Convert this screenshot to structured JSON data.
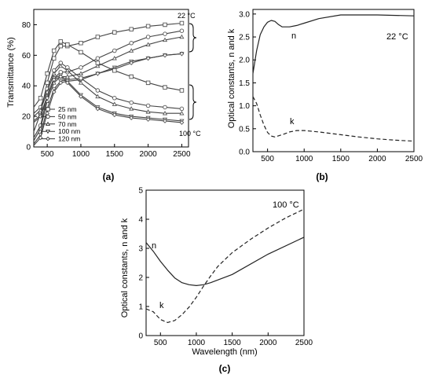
{
  "chart_data": [
    {
      "panel_label": "(a)",
      "type": "line",
      "xlabel": "",
      "ylabel": "Transmittance (%)",
      "xlim": [
        300,
        2600
      ],
      "ylim": [
        0,
        90
      ],
      "x_ticks": [
        500,
        1000,
        1500,
        2000,
        2500
      ],
      "y_ticks": [
        0,
        20,
        40,
        60,
        80
      ],
      "legend_position": "bottom-left",
      "annotations": [
        "22 °C",
        "100 °C"
      ],
      "series": [
        {
          "name": "25 nm",
          "marker": "square",
          "group": "22 °C",
          "x": [
            300,
            400,
            500,
            600,
            700,
            800,
            1000,
            1250,
            1500,
            1750,
            2000,
            2250,
            2500
          ],
          "y": [
            10,
            22,
            42,
            58,
            66,
            66,
            68,
            72,
            75,
            77,
            79,
            80,
            81
          ]
        },
        {
          "name": "50 nm",
          "marker": "circle",
          "group": "22 °C",
          "x": [
            300,
            400,
            500,
            600,
            700,
            800,
            1000,
            1250,
            1500,
            1750,
            2000,
            2250,
            2500
          ],
          "y": [
            6,
            14,
            33,
            45,
            49,
            49,
            52,
            58,
            63,
            68,
            72,
            74,
            76
          ]
        },
        {
          "name": "70 nm",
          "marker": "triangle-up",
          "group": "22 °C",
          "x": [
            300,
            400,
            500,
            600,
            700,
            800,
            1000,
            1250,
            1500,
            1750,
            2000,
            2250,
            2500
          ],
          "y": [
            4,
            12,
            30,
            42,
            46,
            46,
            48,
            53,
            58,
            63,
            67,
            70,
            72
          ]
        },
        {
          "name": "100 nm",
          "marker": "triangle-down",
          "group": "22 °C",
          "x": [
            300,
            400,
            500,
            600,
            700,
            800,
            1000,
            1250,
            1500,
            1750,
            2000,
            2250,
            2500
          ],
          "y": [
            2,
            8,
            25,
            38,
            43,
            44,
            45,
            48,
            52,
            56,
            58,
            60,
            61
          ]
        },
        {
          "name": "120 nm",
          "marker": "diamond",
          "group": "22 °C",
          "x": [
            300,
            400,
            500,
            600,
            700,
            800,
            1000,
            1250,
            1500,
            1750,
            2000,
            2250,
            2500
          ],
          "y": [
            1,
            6,
            22,
            36,
            42,
            43,
            44,
            48,
            51,
            55,
            58,
            60,
            61
          ]
        },
        {
          "name": "25 nm",
          "marker": "square",
          "group": "100 °C",
          "x": [
            300,
            400,
            500,
            600,
            700,
            800,
            1000,
            1250,
            1500,
            1750,
            2000,
            2250,
            2500
          ],
          "y": [
            26,
            32,
            48,
            63,
            69,
            67,
            62,
            55,
            50,
            46,
            42,
            39,
            37
          ]
        },
        {
          "name": "50 nm",
          "marker": "circle",
          "group": "100 °C",
          "x": [
            300,
            400,
            500,
            600,
            700,
            800,
            1000,
            1250,
            1500,
            1750,
            2000,
            2250,
            2500
          ],
          "y": [
            22,
            26,
            38,
            50,
            55,
            52,
            45,
            37,
            32,
            29,
            27,
            26,
            25
          ]
        },
        {
          "name": "70 nm",
          "marker": "triangle-up",
          "group": "100 °C",
          "x": [
            300,
            400,
            500,
            600,
            700,
            800,
            1000,
            1250,
            1500,
            1750,
            2000,
            2250,
            2500
          ],
          "y": [
            20,
            24,
            36,
            48,
            53,
            50,
            42,
            33,
            28,
            25,
            23,
            22,
            22
          ]
        },
        {
          "name": "100 nm",
          "marker": "triangle-down",
          "group": "100 °C",
          "x": [
            300,
            400,
            500,
            600,
            700,
            800,
            1000,
            1250,
            1500,
            1750,
            2000,
            2250,
            2500
          ],
          "y": [
            17,
            21,
            33,
            45,
            47,
            43,
            34,
            26,
            22,
            20,
            19,
            18,
            17
          ]
        },
        {
          "name": "120 nm",
          "marker": "diamond",
          "group": "100 °C",
          "x": [
            300,
            400,
            500,
            600,
            700,
            800,
            1000,
            1250,
            1500,
            1750,
            2000,
            2250,
            2500
          ],
          "y": [
            16,
            20,
            32,
            44,
            46,
            42,
            33,
            25,
            21,
            19,
            18,
            17,
            16
          ]
        }
      ]
    },
    {
      "panel_label": "(b)",
      "type": "line",
      "xlabel": "",
      "ylabel": "Optical constants, n and k",
      "xlim": [
        300,
        2500
      ],
      "ylim": [
        0,
        3.1
      ],
      "x_ticks": [
        500,
        1000,
        1500,
        2000,
        2500
      ],
      "y_ticks": [
        "0.0",
        "0.5",
        "1.0",
        "1.5",
        "2.0",
        "2.5",
        "3.0"
      ],
      "annotations": [
        "22 °C"
      ],
      "series": [
        {
          "name": "n",
          "style": "solid",
          "x": [
            300,
            350,
            400,
            450,
            500,
            550,
            600,
            650,
            700,
            800,
            900,
            1000,
            1200,
            1500,
            2000,
            2500
          ],
          "y": [
            1.7,
            2.2,
            2.55,
            2.72,
            2.82,
            2.86,
            2.84,
            2.77,
            2.72,
            2.72,
            2.75,
            2.8,
            2.9,
            2.98,
            2.98,
            2.96
          ]
        },
        {
          "name": "k",
          "style": "dashed",
          "x": [
            300,
            350,
            400,
            450,
            500,
            550,
            600,
            700,
            800,
            900,
            1000,
            1200,
            1500,
            1750,
            2000,
            2250,
            2500
          ],
          "y": [
            1.2,
            1.05,
            0.8,
            0.58,
            0.42,
            0.34,
            0.32,
            0.37,
            0.43,
            0.46,
            0.46,
            0.43,
            0.37,
            0.32,
            0.28,
            0.25,
            0.23
          ]
        }
      ]
    },
    {
      "panel_label": "(c)",
      "type": "line",
      "xlabel": "Wavelength (nm)",
      "ylabel": "Optical constants, n and k",
      "xlim": [
        300,
        2500
      ],
      "ylim": [
        0,
        5
      ],
      "x_ticks": [
        500,
        1000,
        1500,
        2000,
        2500
      ],
      "y_ticks": [
        0,
        1,
        2,
        3,
        4,
        5
      ],
      "annotations": [
        "100 °C"
      ],
      "series": [
        {
          "name": "n",
          "style": "solid",
          "x": [
            300,
            400,
            500,
            600,
            700,
            800,
            900,
            1000,
            1100,
            1200,
            1500,
            2000,
            2500
          ],
          "y": [
            3.2,
            2.9,
            2.55,
            2.25,
            1.98,
            1.82,
            1.75,
            1.72,
            1.75,
            1.82,
            2.1,
            2.8,
            3.38
          ]
        },
        {
          "name": "k",
          "style": "dashed",
          "x": [
            300,
            400,
            500,
            600,
            700,
            800,
            900,
            1000,
            1100,
            1200,
            1300,
            1500,
            1750,
            2000,
            2250,
            2500
          ],
          "y": [
            0.92,
            0.82,
            0.55,
            0.45,
            0.52,
            0.72,
            0.98,
            1.32,
            1.7,
            2.05,
            2.38,
            2.85,
            3.3,
            3.7,
            4.05,
            4.35
          ]
        }
      ]
    }
  ]
}
